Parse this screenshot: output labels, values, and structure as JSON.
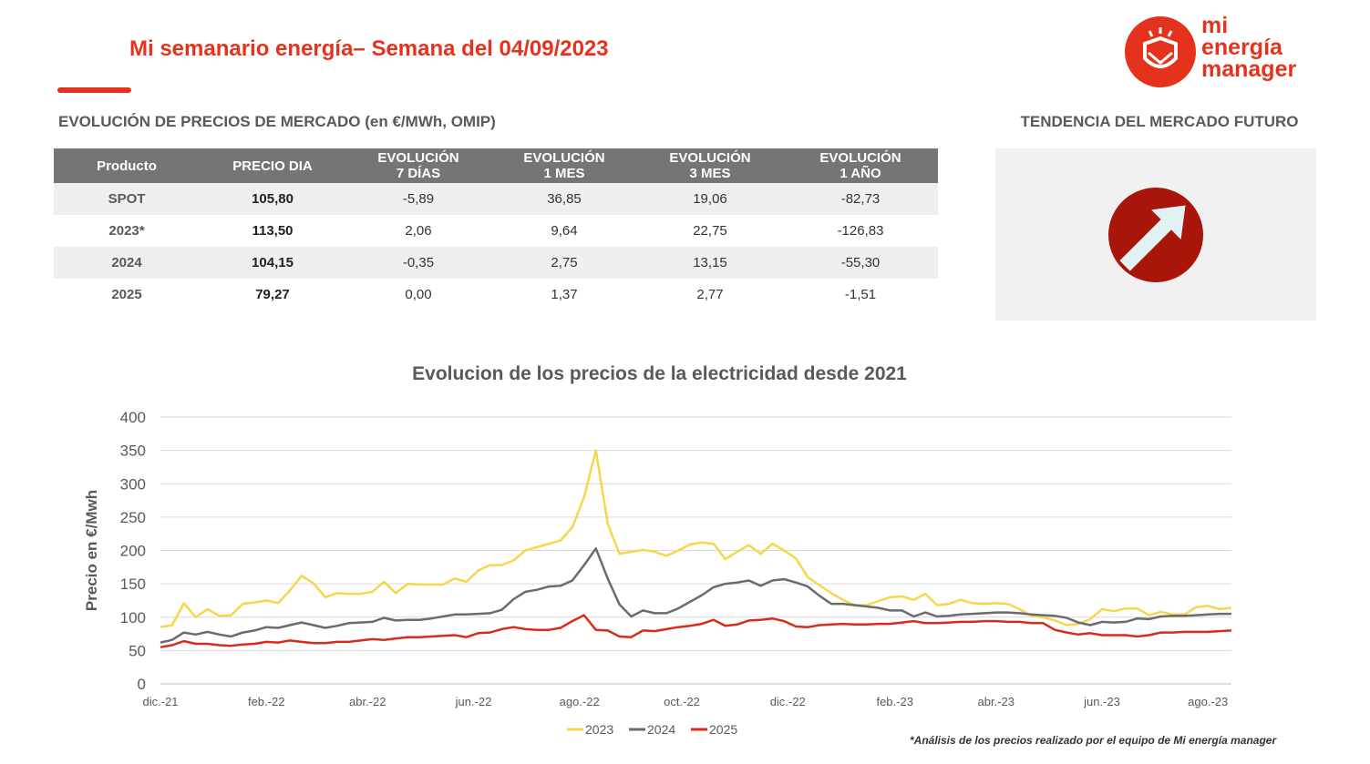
{
  "header": {
    "title": "Mi semanario energía– Semana del 04/09/2023"
  },
  "logo": {
    "line1": "mi",
    "line2": "energía",
    "line3": "manager"
  },
  "table_section": {
    "heading": "EVOLUCIÓN DE PRECIOS DE MERCADO (en €/MWh, OMIP)"
  },
  "table": {
    "headers": [
      {
        "line1": "Producto",
        "line2": ""
      },
      {
        "line1": "PRECIO DIA",
        "line2": ""
      },
      {
        "line1": "EVOLUCIÓN",
        "line2": "7 DÍAS"
      },
      {
        "line1": "EVOLUCIÓN",
        "line2": "1 MES"
      },
      {
        "line1": "EVOLUCIÓN",
        "line2": "3 MES"
      },
      {
        "line1": "EVOLUCIÓN",
        "line2": "1 AÑO"
      }
    ],
    "rows": [
      [
        "SPOT",
        "105,80",
        "-5,89",
        "36,85",
        "19,06",
        "-82,73"
      ],
      [
        "2023*",
        "113,50",
        "2,06",
        "9,64",
        "22,75",
        "-126,83"
      ],
      [
        "2024",
        "104,15",
        "-0,35",
        "2,75",
        "13,15",
        "-55,30"
      ],
      [
        "2025",
        "79,27",
        "0,00",
        "1,37",
        "2,77",
        "-1,51"
      ]
    ]
  },
  "trend": {
    "heading": "TENDENCIA DEL MERCADO FUTURO",
    "direction": "up"
  },
  "colors": {
    "accent": "#e5321c",
    "trend_circle": "#a8150a",
    "s2023": "#f6d64a",
    "s2024": "#6b6b6b",
    "s2025": "#d92b1c"
  },
  "chart_data": {
    "type": "line",
    "title": "Evolucion de los precios de la electricidad desde 2021",
    "xlabel": "",
    "ylabel": "Precio en €/Mwh",
    "ylim": [
      0,
      400
    ],
    "yticks": [
      0,
      50,
      100,
      150,
      200,
      250,
      300,
      350,
      400
    ],
    "xlim": [
      0,
      91
    ],
    "grid": true,
    "legend_position": "bottom",
    "x_tick_labels": [
      {
        "label": "dic.-21",
        "x": 0
      },
      {
        "label": "feb.-22",
        "x": 9
      },
      {
        "label": "abr.-22",
        "x": 17.6
      },
      {
        "label": "jun.-22",
        "x": 26.6
      },
      {
        "label": "ago.-22",
        "x": 35.6
      },
      {
        "label": "oct.-22",
        "x": 44.3
      },
      {
        "label": "dic.-22",
        "x": 53.3
      },
      {
        "label": "feb.-23",
        "x": 62.4
      },
      {
        "label": "abr.-23",
        "x": 71
      },
      {
        "label": "jun.-23",
        "x": 80
      },
      {
        "label": "ago.-23",
        "x": 89
      }
    ],
    "series": [
      {
        "name": "2023",
        "color": "#f6d64a",
        "values": [
          85,
          88,
          121,
          100,
          112,
          102,
          103,
          120,
          122,
          125,
          121,
          140,
          162,
          151,
          130,
          136,
          135,
          135,
          138,
          153,
          136,
          150,
          149,
          149,
          149,
          158,
          153,
          170,
          178,
          178,
          185,
          200,
          205,
          210,
          215,
          235,
          280,
          350,
          240,
          195,
          198,
          201,
          198,
          192,
          200,
          209,
          212,
          210,
          187,
          198,
          208,
          195,
          210,
          200,
          188,
          160,
          148,
          136,
          126,
          118,
          118,
          124,
          130,
          131,
          126,
          135,
          118,
          120,
          126,
          121,
          120,
          121,
          120,
          112,
          102,
          100,
          95,
          88,
          90,
          97,
          112,
          109,
          113,
          113,
          103,
          108,
          104,
          104,
          115,
          117,
          112,
          114
        ]
      },
      {
        "name": "2024",
        "color": "#6b6b6b",
        "values": [
          62,
          66,
          77,
          74,
          78,
          74,
          71,
          77,
          80,
          85,
          84,
          88,
          92,
          88,
          84,
          87,
          91,
          92,
          93,
          99,
          95,
          96,
          96,
          98,
          101,
          104,
          104,
          105,
          106,
          111,
          127,
          138,
          141,
          146,
          147,
          155,
          178,
          203,
          158,
          119,
          101,
          110,
          106,
          106,
          113,
          123,
          133,
          145,
          150,
          152,
          155,
          147,
          155,
          157,
          152,
          146,
          132,
          120,
          120,
          118,
          116,
          114,
          110,
          110,
          101,
          107,
          101,
          102,
          104,
          105,
          106,
          107,
          107,
          106,
          104,
          103,
          102,
          99,
          92,
          88,
          93,
          92,
          93,
          98,
          97,
          101,
          102,
          102,
          103,
          104,
          105,
          105
        ]
      },
      {
        "name": "2025",
        "color": "#d92b1c",
        "values": [
          55,
          58,
          64,
          60,
          60,
          58,
          57,
          59,
          60,
          63,
          62,
          65,
          63,
          61,
          61,
          63,
          63,
          65,
          67,
          66,
          68,
          70,
          70,
          71,
          72,
          73,
          70,
          76,
          77,
          82,
          85,
          82,
          81,
          81,
          84,
          94,
          103,
          81,
          80,
          71,
          70,
          80,
          79,
          82,
          85,
          87,
          90,
          96,
          87,
          89,
          95,
          96,
          98,
          94,
          86,
          85,
          88,
          89,
          90,
          89,
          89,
          90,
          90,
          92,
          94,
          91,
          91,
          92,
          93,
          93,
          94,
          94,
          93,
          93,
          91,
          91,
          81,
          77,
          74,
          76,
          73,
          73,
          73,
          71,
          73,
          77,
          77,
          78,
          78,
          78,
          79,
          80
        ]
      }
    ]
  },
  "footnote": "*Análisis de los precios realizado por el equipo de Mi energía manager"
}
